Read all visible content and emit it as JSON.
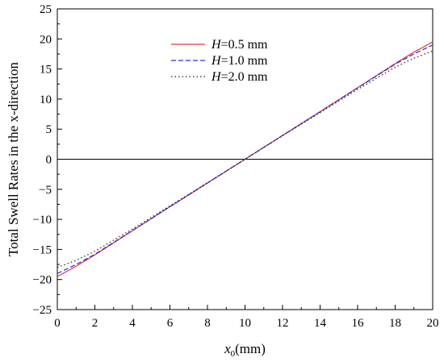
{
  "chart_data": {
    "type": "line",
    "title": "",
    "xlabel": {
      "base": "x",
      "sub": "0",
      "unit": "(mm)"
    },
    "ylabel": "Total Swell Rates in the x-direction",
    "xlim": [
      0,
      20
    ],
    "ylim": [
      -25,
      25
    ],
    "xticks": [
      0,
      2,
      4,
      6,
      8,
      10,
      12,
      14,
      16,
      18,
      20
    ],
    "yticks": [
      -25,
      -20,
      -15,
      -10,
      -5,
      0,
      5,
      10,
      15,
      20,
      25
    ],
    "tick_labels_x": [
      "0",
      "2",
      "4",
      "6",
      "8",
      "10",
      "12",
      "14",
      "16",
      "18",
      "20"
    ],
    "tick_labels_y": [
      "−25",
      "−20",
      "−15",
      "−10",
      "−5",
      "0",
      "5",
      "10",
      "15",
      "20",
      "25"
    ],
    "grid": false,
    "zero_line": 0,
    "legend": {
      "position": "top-left"
    },
    "series": [
      {
        "name_var": "H",
        "name_rest": "=0.5 mm",
        "color": "#e8302c",
        "dash": "solid",
        "x": [
          0,
          1,
          2,
          4,
          6,
          8,
          10,
          12,
          14,
          16,
          18,
          19,
          20
        ],
        "y": [
          -19.5,
          -17.8,
          -15.9,
          -11.9,
          -7.9,
          -3.95,
          0,
          3.95,
          7.9,
          11.9,
          15.9,
          17.8,
          19.5
        ]
      },
      {
        "name_var": "H",
        "name_rest": "=1.0 mm",
        "color": "#2a2ad8",
        "dash": "dashed",
        "x": [
          0,
          1,
          2,
          4,
          6,
          8,
          10,
          12,
          14,
          16,
          18,
          19,
          20
        ],
        "y": [
          -19.0,
          -17.5,
          -15.8,
          -11.85,
          -7.9,
          -3.95,
          0,
          3.95,
          7.9,
          11.85,
          15.8,
          17.5,
          19.0
        ]
      },
      {
        "name_var": "H",
        "name_rest": "=2.0 mm",
        "color": "#222222",
        "dash": "dotted",
        "x": [
          0,
          1,
          2,
          4,
          6,
          8,
          10,
          12,
          14,
          16,
          18,
          19,
          20
        ],
        "y": [
          -18.0,
          -16.8,
          -15.3,
          -11.6,
          -7.75,
          -3.9,
          0,
          3.9,
          7.75,
          11.6,
          15.3,
          16.8,
          18.0
        ]
      }
    ]
  }
}
